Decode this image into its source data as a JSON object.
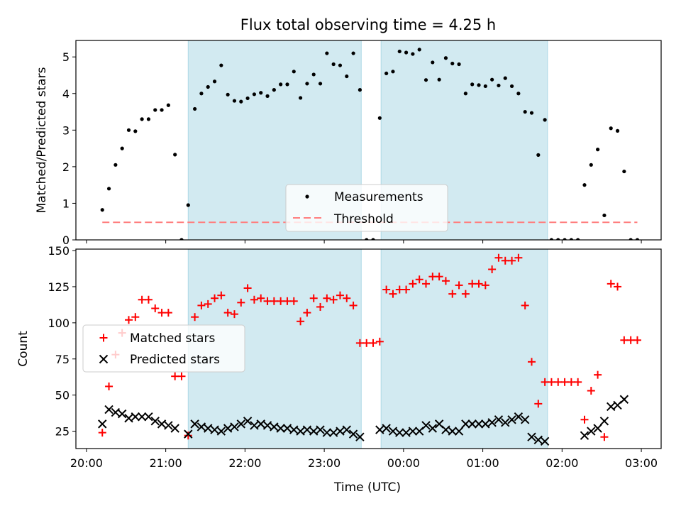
{
  "title": "Flux total observing time = 4.25 h",
  "colors": {
    "shade": "#add8e6",
    "measurement": "#000000",
    "threshold": "#ff7f7f",
    "matched": "#ff0000",
    "predicted": "#000000"
  },
  "x_axis": {
    "label": "Time (UTC)",
    "ticks": [
      {
        "t": 0,
        "label": "20:00"
      },
      {
        "t": 60,
        "label": "21:00"
      },
      {
        "t": 120,
        "label": "22:00"
      },
      {
        "t": 180,
        "label": "23:00"
      },
      {
        "t": 240,
        "label": "00:00"
      },
      {
        "t": 300,
        "label": "01:00"
      },
      {
        "t": 360,
        "label": "02:00"
      },
      {
        "t": 420,
        "label": "03:00"
      }
    ],
    "xlim": [
      -8,
      435
    ]
  },
  "shaded_intervals": [
    [
      77,
      208
    ],
    [
      223,
      349
    ]
  ],
  "chart_data": [
    {
      "type": "scatter",
      "ylabel": "Matched/Predicted stars",
      "ylim": [
        0,
        5.45
      ],
      "yticks": [
        0,
        1,
        2,
        3,
        4,
        5
      ],
      "legend": {
        "placement": "lower-center",
        "entries": [
          "Measurements",
          "Threshold"
        ]
      },
      "threshold": {
        "name": "Threshold",
        "value": 0.48,
        "x_range": [
          12,
          417
        ]
      },
      "series": [
        {
          "name": "Measurements",
          "x": [
            12,
            17,
            22,
            27,
            32,
            37,
            42,
            47,
            52,
            57,
            62,
            67,
            72,
            77,
            82,
            87,
            92,
            97,
            102,
            107,
            112,
            117,
            122,
            127,
            132,
            137,
            142,
            147,
            152,
            157,
            162,
            167,
            172,
            177,
            182,
            187,
            192,
            197,
            202,
            207,
            212,
            217,
            222,
            227,
            232,
            237,
            242,
            247,
            252,
            257,
            262,
            267,
            272,
            277,
            282,
            287,
            292,
            297,
            302,
            307,
            312,
            317,
            322,
            327,
            332,
            337,
            342,
            347,
            352,
            357,
            362,
            367,
            372,
            377,
            382,
            387,
            392,
            397,
            402,
            407,
            412,
            417
          ],
          "y": [
            0.82,
            1.4,
            2.05,
            2.5,
            3.0,
            2.97,
            3.3,
            3.3,
            3.55,
            3.55,
            3.68,
            2.33,
            0,
            0.95,
            3.58,
            4.0,
            4.18,
            4.33,
            4.77,
            3.97,
            3.8,
            3.78,
            3.87,
            3.98,
            4.02,
            3.93,
            4.1,
            4.25,
            4.25,
            4.6,
            3.88,
            4.27,
            4.52,
            4.27,
            5.1,
            4.8,
            4.77,
            4.47,
            5.1,
            4.1,
            0,
            0,
            3.33,
            4.55,
            4.6,
            5.15,
            5.12,
            5.08,
            5.2,
            4.37,
            4.85,
            4.38,
            4.97,
            4.82,
            4.8,
            4.0,
            4.25,
            4.23,
            4.2,
            4.38,
            4.22,
            4.42,
            4.2,
            4.0,
            3.5,
            3.47,
            2.32,
            3.28,
            0,
            0,
            0,
            0,
            0,
            1.5,
            2.05,
            2.47,
            0.67,
            3.05,
            2.98,
            1.87,
            0,
            0
          ]
        }
      ]
    },
    {
      "type": "scatter",
      "ylabel": "Count",
      "ylim": [
        13,
        151
      ],
      "yticks": [
        25,
        50,
        75,
        100,
        125,
        150
      ],
      "legend": {
        "placement": "center-left",
        "entries": [
          "Matched stars",
          "Predicted stars"
        ]
      },
      "series": [
        {
          "name": "Matched stars",
          "x": [
            12,
            17,
            22,
            27,
            32,
            37,
            42,
            47,
            52,
            57,
            62,
            67,
            72,
            77,
            82,
            87,
            92,
            97,
            102,
            107,
            112,
            117,
            122,
            127,
            132,
            137,
            142,
            147,
            152,
            157,
            162,
            167,
            172,
            177,
            182,
            187,
            192,
            197,
            202,
            207,
            212,
            217,
            222,
            227,
            232,
            237,
            242,
            247,
            252,
            257,
            262,
            267,
            272,
            277,
            282,
            287,
            292,
            297,
            302,
            307,
            312,
            317,
            322,
            327,
            332,
            337,
            342,
            347,
            352,
            357,
            362,
            367,
            372,
            377,
            382,
            387,
            392,
            397,
            402,
            407,
            412,
            417
          ],
          "y": [
            24,
            56,
            78,
            93,
            102,
            104,
            116,
            116,
            110,
            107,
            107,
            63,
            63,
            22,
            104,
            112,
            113,
            117,
            119,
            107,
            106,
            114,
            124,
            116,
            117,
            115,
            115,
            115,
            115,
            115,
            101,
            107,
            117,
            111,
            117,
            116,
            119,
            117,
            112,
            86,
            86,
            86,
            87,
            123,
            120,
            123,
            123,
            127,
            130,
            127,
            132,
            132,
            129,
            120,
            126,
            120,
            127,
            127,
            126,
            137,
            145,
            143,
            143,
            145,
            112,
            73,
            44,
            59,
            59,
            59,
            59,
            59,
            59,
            33,
            53,
            64,
            21,
            127,
            125,
            88,
            88,
            88
          ],
          "marker": "plus"
        },
        {
          "name": "Predicted stars",
          "x": [
            12,
            17,
            22,
            27,
            32,
            37,
            42,
            47,
            52,
            57,
            62,
            67,
            72,
            77,
            82,
            87,
            92,
            97,
            102,
            107,
            112,
            117,
            122,
            127,
            132,
            137,
            142,
            147,
            152,
            157,
            162,
            167,
            172,
            177,
            182,
            187,
            192,
            197,
            202,
            207,
            212,
            217,
            222,
            227,
            232,
            237,
            242,
            247,
            252,
            257,
            262,
            267,
            272,
            277,
            282,
            287,
            292,
            297,
            302,
            307,
            312,
            317,
            322,
            327,
            332,
            337,
            342,
            347,
            352,
            357,
            362,
            367,
            372,
            377,
            382,
            387,
            392,
            397,
            402,
            407,
            412,
            417
          ],
          "y": [
            30,
            40,
            38,
            37,
            34,
            35,
            35,
            35,
            32,
            30,
            29,
            27,
            null,
            23,
            30,
            28,
            27,
            26,
            25,
            27,
            28,
            30,
            32,
            29,
            30,
            29,
            28,
            27,
            27,
            26,
            25,
            26,
            25,
            26,
            24,
            24,
            25,
            26,
            23,
            21,
            null,
            null,
            26,
            27,
            25,
            24,
            24,
            25,
            25,
            29,
            27,
            30,
            26,
            25,
            25,
            30,
            30,
            30,
            30,
            31,
            33,
            31,
            33,
            35,
            33,
            21,
            19,
            18,
            null,
            null,
            null,
            null,
            null,
            22,
            25,
            27,
            32,
            42,
            43,
            47,
            null,
            null
          ],
          "marker": "x"
        }
      ]
    }
  ]
}
